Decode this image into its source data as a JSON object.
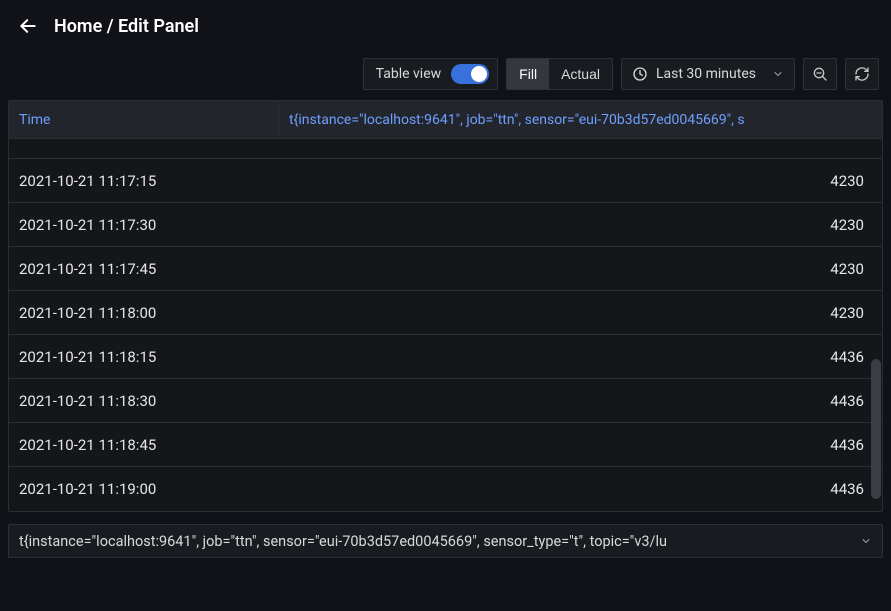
{
  "colors": {
    "bg": "#111217",
    "panel": "#141619",
    "header": "#22252b",
    "border": "#2c2e33",
    "text": "#d8d9da",
    "link": "#6e9fff",
    "accent": "#3871dc"
  },
  "breadcrumb": "Home / Edit Panel",
  "toolbar": {
    "table_view_label": "Table view",
    "table_view_on": true,
    "fill_label": "Fill",
    "actual_label": "Actual",
    "active_mode": "fill",
    "time_range_label": "Last 30 minutes"
  },
  "table": {
    "columns": {
      "time": "Time",
      "value": "t{instance=\"localhost:9641\", job=\"ttn\", sensor=\"eui-70b3d57ed0045669\", s"
    },
    "rows": [
      {
        "time": "2021-10-21 11:17:15",
        "value": "4230"
      },
      {
        "time": "2021-10-21 11:17:30",
        "value": "4230"
      },
      {
        "time": "2021-10-21 11:17:45",
        "value": "4230"
      },
      {
        "time": "2021-10-21 11:18:00",
        "value": "4230"
      },
      {
        "time": "2021-10-21 11:18:15",
        "value": "4436"
      },
      {
        "time": "2021-10-21 11:18:30",
        "value": "4436"
      },
      {
        "time": "2021-10-21 11:18:45",
        "value": "4436"
      },
      {
        "time": "2021-10-21 11:19:00",
        "value": "4436"
      }
    ]
  },
  "query_select": {
    "text": "t{instance=\"localhost:9641\", job=\"ttn\", sensor=\"eui-70b3d57ed0045669\", sensor_type=\"t\", topic=\"v3/lu"
  }
}
